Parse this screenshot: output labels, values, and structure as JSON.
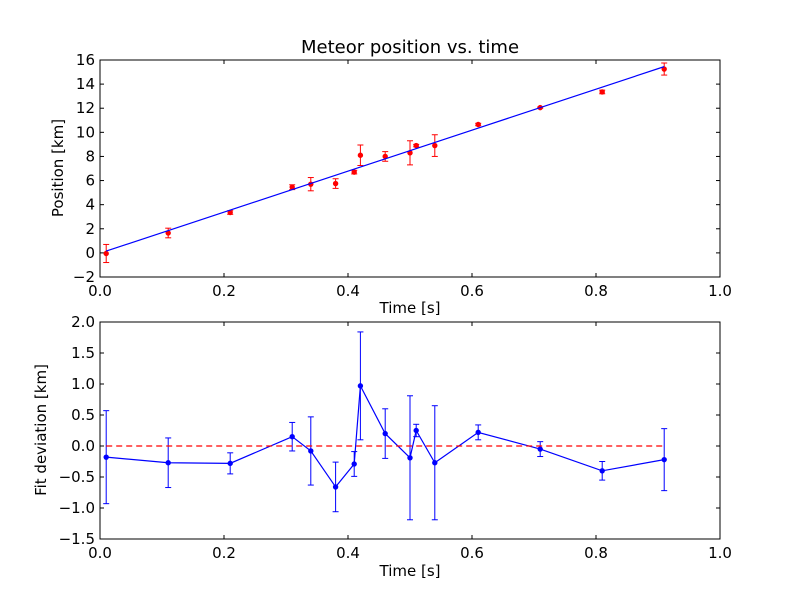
{
  "chart_data": [
    {
      "type": "scatter",
      "title": "Meteor position vs. time",
      "xlabel": "Time [s]",
      "ylabel": "Position [km]",
      "xlim": [
        0.0,
        1.0
      ],
      "ylim": [
        -2,
        16
      ],
      "xticks": [
        "0.0",
        "0.2",
        "0.4",
        "0.6",
        "0.8",
        "1.0"
      ],
      "yticks": [
        "−2",
        "0",
        "2",
        "4",
        "6",
        "8",
        "10",
        "12",
        "14",
        "16"
      ],
      "grid": false,
      "series": [
        {
          "kind": "errorbar",
          "color": "#ff0000",
          "x": [
            0.01,
            0.11,
            0.21,
            0.31,
            0.34,
            0.38,
            0.41,
            0.42,
            0.46,
            0.5,
            0.51,
            0.54,
            0.61,
            0.71,
            0.81,
            0.91
          ],
          "y": [
            -0.05,
            1.65,
            3.35,
            5.45,
            5.7,
            5.75,
            6.7,
            8.1,
            8.0,
            8.3,
            8.9,
            8.9,
            10.65,
            12.05,
            13.35,
            15.25
          ],
          "err": [
            0.75,
            0.4,
            0.15,
            0.2,
            0.55,
            0.4,
            0.15,
            0.85,
            0.4,
            1.0,
            0.1,
            0.9,
            0.1,
            0.05,
            0.15,
            0.5
          ]
        },
        {
          "kind": "fit-line",
          "color": "#0000ff",
          "x": [
            0.01,
            0.91
          ],
          "y": [
            0.15,
            15.45
          ]
        }
      ]
    },
    {
      "type": "line",
      "title": "",
      "xlabel": "Time [s]",
      "ylabel": "Fit deviation [km]",
      "xlim": [
        0.0,
        1.0
      ],
      "ylim": [
        -1.5,
        2.0
      ],
      "xticks": [
        "0.0",
        "0.2",
        "0.4",
        "0.6",
        "0.8",
        "1.0"
      ],
      "yticks": [
        "−1.5",
        "−1.0",
        "−0.5",
        "0.0",
        "0.5",
        "1.0",
        "1.5",
        "2.0"
      ],
      "grid": false,
      "series": [
        {
          "kind": "errorbar-line",
          "color": "#0000ff",
          "x": [
            0.01,
            0.11,
            0.21,
            0.31,
            0.34,
            0.38,
            0.41,
            0.42,
            0.46,
            0.5,
            0.51,
            0.54,
            0.61,
            0.71,
            0.81,
            0.91
          ],
          "y": [
            -0.18,
            -0.27,
            -0.28,
            0.15,
            -0.08,
            -0.66,
            -0.29,
            0.97,
            0.2,
            -0.19,
            0.25,
            -0.27,
            0.22,
            -0.05,
            -0.4,
            -0.22
          ],
          "err": [
            0.75,
            0.4,
            0.17,
            0.23,
            0.55,
            0.4,
            0.2,
            0.87,
            0.4,
            1.0,
            0.1,
            0.92,
            0.12,
            0.12,
            0.15,
            0.5
          ]
        },
        {
          "kind": "reference-line",
          "color": "#ff0000",
          "dashed": true,
          "y": 0.0
        }
      ]
    }
  ]
}
